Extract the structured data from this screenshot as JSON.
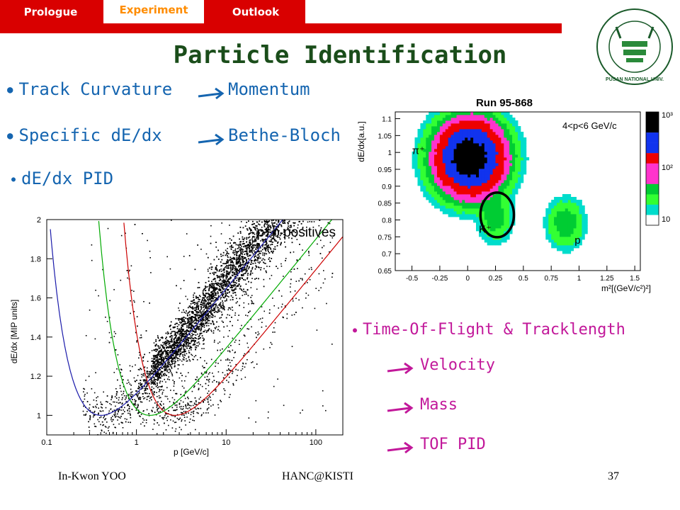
{
  "tabs": [
    {
      "label": "Prologue"
    },
    {
      "label": "Experiment"
    },
    {
      "label": "Outlook"
    }
  ],
  "title": "Particle Identification",
  "logo": {
    "text": "부산대학교 PUSAN NATIONAL UNIVERSITY"
  },
  "bullets": [
    {
      "left": "Track Curvature",
      "right": "Momentum"
    },
    {
      "left": "Specific dE/dx",
      "right": "Bethe-Bloch"
    },
    {
      "left": "dE/dx PID",
      "right": ""
    }
  ],
  "tof": {
    "heading": "Time-Of-Flight & Tracklength",
    "items": [
      "Velocity",
      "Mass",
      "TOF PID"
    ]
  },
  "footer": {
    "author": "In-Kwon YOO",
    "venue": "HANC@KISTI",
    "page": "37"
  },
  "colors": {
    "accent_red": "#d90000",
    "title_green": "#1a4d1a",
    "bullet_blue": "#1565b0",
    "tof_magenta": "#c2189a"
  },
  "chart_data": [
    {
      "type": "scatter",
      "title": "",
      "annotation": "p+p positives",
      "xlabel": "p [GeV/c]",
      "ylabel": "dE/dx [MIP units]",
      "xscale": "log",
      "xlim": [
        0.1,
        200
      ],
      "ylim": [
        0.9,
        2.0
      ],
      "x_ticks": [
        "0.1",
        "1",
        "10",
        "100"
      ],
      "y_ticks": [
        "1",
        "1.2",
        "1.4",
        "1.6",
        "1.8",
        "2"
      ],
      "series": [
        {
          "color": "#cc0000",
          "mass": 0.938
        },
        {
          "color": "#00aa00",
          "mass": 0.494
        },
        {
          "color": "#1a1aaa",
          "mass": 0.14
        }
      ]
    },
    {
      "type": "heatmap",
      "title": "Run 95-868",
      "annotation": "4<p<6 GeV/c",
      "xlabel": "m²[(GeV/c²)²]",
      "ylabel": "dE/dx[a.u.]",
      "xlim": [
        -0.65,
        1.55
      ],
      "ylim": [
        0.65,
        1.12
      ],
      "x_ticks": [
        "-0.5",
        "-0.25",
        "0",
        "0.25",
        "0.5",
        "0.75",
        "1",
        "1.25",
        "1.5"
      ],
      "y_ticks": [
        "0.65",
        "0.7",
        "0.75",
        "0.8",
        "0.85",
        "0.9",
        "0.95",
        "1",
        "1.05",
        "1.1"
      ],
      "labels": [
        {
          "text": "π⁺",
          "x": -0.5,
          "y": 0.995
        },
        {
          "text": "K⁺",
          "x": 0.1,
          "y": 0.762
        },
        {
          "text": "p",
          "x": 0.96,
          "y": 0.73
        }
      ],
      "clusters": [
        {
          "m2": 0.02,
          "dedx": 0.985,
          "sx": 0.14,
          "sy": 0.05,
          "peak": 1000
        },
        {
          "m2": 0.245,
          "dedx": 0.81,
          "sx": 0.07,
          "sy": 0.035,
          "peak": 25
        },
        {
          "m2": 0.88,
          "dedx": 0.79,
          "sx": 0.08,
          "sy": 0.035,
          "peak": 25
        }
      ],
      "colorbar_ticks": [
        "10³",
        "10²",
        "10"
      ],
      "colorbar_colors": [
        "#000000",
        "#1133ee",
        "#ee0000",
        "#ff33cc",
        "#00cc33",
        "#33ff33",
        "#00ddcc",
        "#ffffff"
      ]
    }
  ]
}
